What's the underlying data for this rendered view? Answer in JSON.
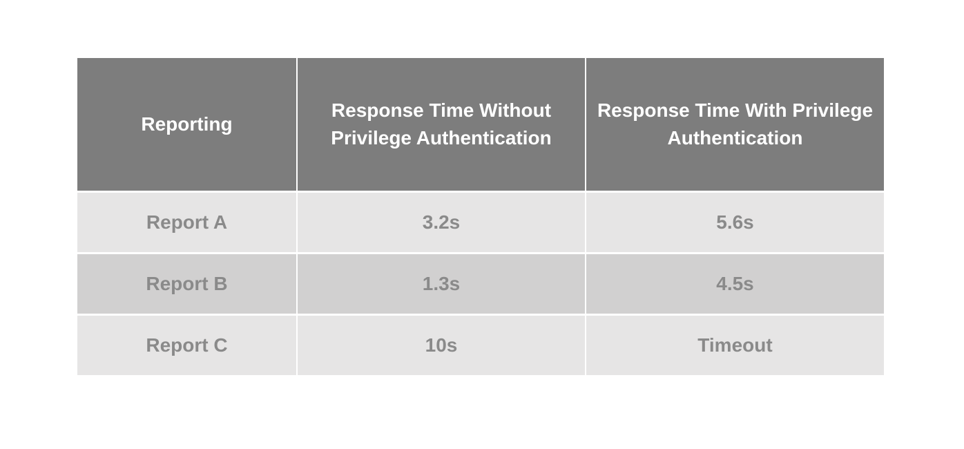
{
  "chart_data": {
    "type": "table",
    "title": "",
    "columns": [
      "Reporting",
      "Response Time Without Privilege Authentication",
      "Response Time With Privilege Authentication"
    ],
    "rows": [
      [
        "Report A",
        "3.2s",
        "5.6s"
      ],
      [
        "Report B",
        "1.3s",
        "4.5s"
      ],
      [
        "Report C",
        "10s",
        "Timeout"
      ]
    ]
  },
  "colors": {
    "header_bg": "#7d7d7d",
    "header_text": "#ffffff",
    "row_light_bg": "#e6e5e5",
    "row_dark_bg": "#d1d0d0",
    "row_text": "#8a8a8a",
    "divider": "#ffffff",
    "page_bg": "#ffffff"
  }
}
